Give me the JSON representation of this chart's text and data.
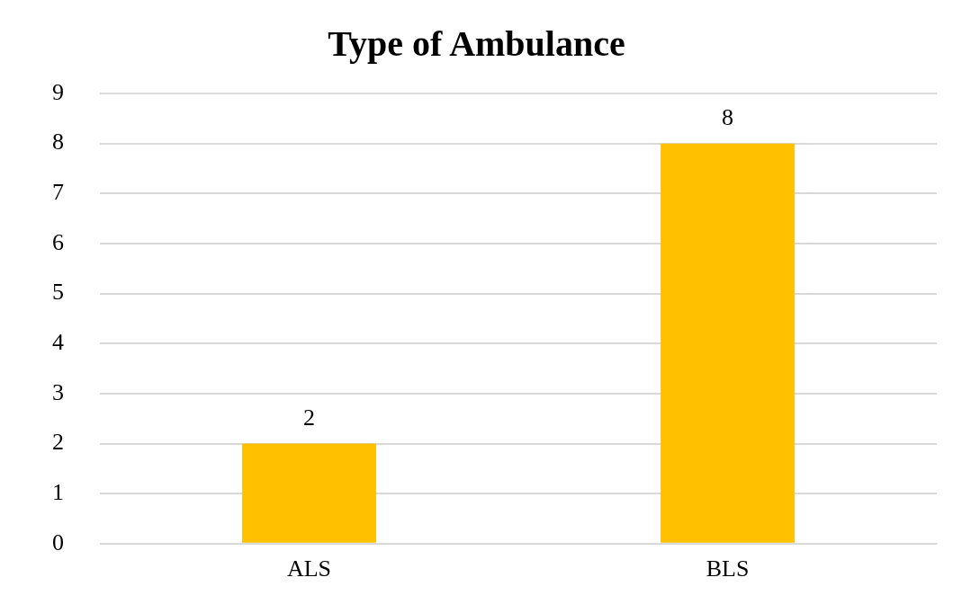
{
  "chart_data": {
    "type": "bar",
    "title": "Type of Ambulance",
    "categories": [
      "ALS",
      "BLS"
    ],
    "values": [
      2,
      8
    ],
    "color": "#ffc000",
    "ylim": [
      0,
      9
    ],
    "yticks": [
      0,
      1,
      2,
      3,
      4,
      5,
      6,
      7,
      8,
      9
    ],
    "grid": "y",
    "data_labels": true,
    "legend": false
  }
}
